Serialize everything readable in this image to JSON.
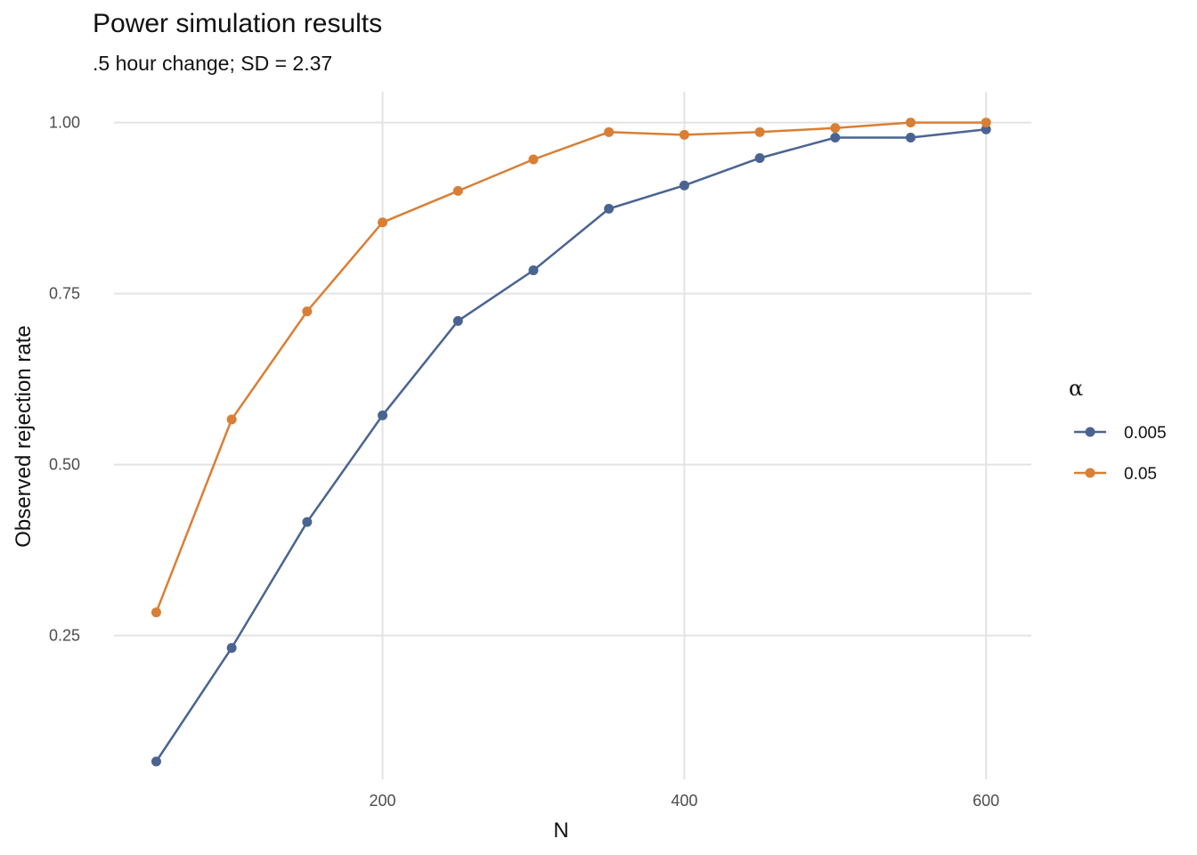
{
  "chart_data": {
    "type": "line",
    "title": "Power simulation results",
    "subtitle": ".5 hour change; SD = 2.37",
    "xlabel": "N",
    "ylabel": "Observed rejection rate",
    "x": [
      50,
      100,
      150,
      200,
      250,
      300,
      350,
      400,
      450,
      500,
      550,
      600
    ],
    "xticks": [
      200,
      400,
      600
    ],
    "yticks": [
      0.25,
      0.5,
      0.75,
      1.0
    ],
    "ytick_labels": [
      "0.25",
      "0.50",
      "0.75",
      "1.00"
    ],
    "xlim": [
      22,
      630
    ],
    "ylim": [
      0.04,
      1.045
    ],
    "grid": true,
    "legend": {
      "title": "α",
      "placement": "right"
    },
    "series": [
      {
        "name": "0.005",
        "color": "#4a6491",
        "values": [
          0.066,
          0.232,
          0.416,
          0.572,
          0.71,
          0.784,
          0.874,
          0.908,
          0.948,
          0.978,
          0.978,
          0.99
        ]
      },
      {
        "name": "0.05",
        "color": "#d97f35",
        "values": [
          0.284,
          0.566,
          0.724,
          0.854,
          0.9,
          0.946,
          0.986,
          0.982,
          0.986,
          0.992,
          1.0,
          1.0
        ]
      }
    ]
  }
}
